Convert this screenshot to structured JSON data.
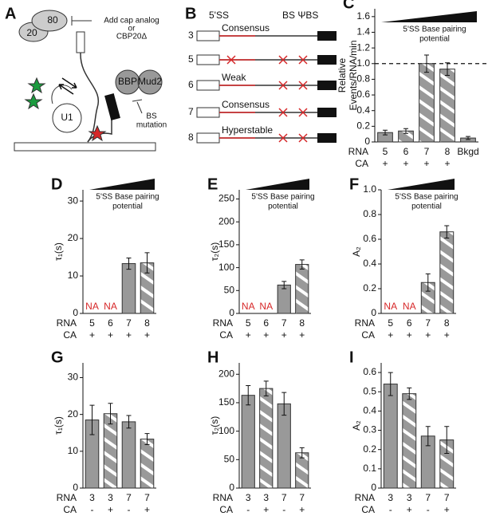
{
  "panels": [
    "A",
    "B"
  ],
  "diagram_a": {
    "cap": [
      "80",
      "20"
    ],
    "note": [
      "Add cap analog",
      "or",
      "CBP20Δ"
    ],
    "proteins": [
      "BBP",
      "Mud2"
    ],
    "bs_note": [
      "BS",
      "mutation"
    ],
    "u1": "U1"
  },
  "diagram_b": {
    "header": [
      "5'SS",
      "BS ΨBS"
    ],
    "rows": [
      {
        "label": "3",
        "site": "Consensus",
        "mut5ss": false,
        "mutbs": false
      },
      {
        "label": "5",
        "site": null,
        "mut5ss": true,
        "mutbs": true
      },
      {
        "label": "6",
        "site": "Weak",
        "mut5ss": false,
        "mutbs": true
      },
      {
        "label": "7",
        "site": "Consensus",
        "mut5ss": false,
        "mutbs": true
      },
      {
        "label": "8",
        "site": "Hyperstable",
        "mut5ss": false,
        "mutbs": true
      }
    ]
  },
  "chart_data": [
    {
      "type": "bar",
      "panel": "C",
      "ylabel": [
        "Relative",
        "Events/RNA/min"
      ],
      "annotation": [
        "5'SS Base pairing",
        "potential"
      ],
      "row_labels": [
        "RNA",
        "CA"
      ],
      "categories": [
        "5",
        "6",
        "7",
        "8",
        "Bkgd"
      ],
      "ca": [
        "+",
        "+",
        "+",
        "+",
        null
      ],
      "values": [
        0.12,
        0.14,
        1.0,
        0.93,
        0.05
      ],
      "errors": [
        0.03,
        0.03,
        0.11,
        0.08,
        0.02
      ],
      "hatched": [
        false,
        true,
        true,
        true,
        false
      ],
      "color": "#999999",
      "reference_line": 1.0,
      "ylim": [
        0,
        1.7
      ],
      "yticks": [
        0,
        0.2,
        0.4,
        0.6,
        0.8,
        {
          "value": 1,
          "label": "1.0"
        },
        1.2,
        1.4,
        1.6
      ]
    },
    {
      "type": "bar",
      "panel": "D",
      "ylabel": "τ₁(s)",
      "annotation": [
        "5'SS Base pairing",
        "potential"
      ],
      "row_labels": [
        "RNA",
        "CA"
      ],
      "categories": [
        "5",
        "6",
        "7",
        "8"
      ],
      "ca": [
        "+",
        "+",
        "+",
        "+"
      ],
      "values": [
        null,
        null,
        13.3,
        13.5
      ],
      "errors": [
        null,
        null,
        1.5,
        2.7
      ],
      "value_labels": [
        "NA",
        "NA",
        null,
        null
      ],
      "hatched": [
        false,
        false,
        false,
        true
      ],
      "color": "#999999",
      "ylim": [
        0,
        33
      ],
      "yticks": [
        0,
        10,
        20,
        30
      ]
    },
    {
      "type": "bar",
      "panel": "E",
      "ylabel": "τ₂(s)",
      "annotation": [
        "5'SS Base pairing",
        "potential"
      ],
      "row_labels": [
        "RNA",
        "CA"
      ],
      "categories": [
        "5",
        "6",
        "7",
        "8"
      ],
      "ca": [
        "+",
        "+",
        "+",
        "+"
      ],
      "values": [
        null,
        null,
        62,
        107
      ],
      "errors": [
        null,
        null,
        8,
        10
      ],
      "value_labels": [
        "NA",
        "NA",
        null,
        null
      ],
      "hatched": [
        false,
        false,
        false,
        true
      ],
      "color": "#999999",
      "ylim": [
        0,
        270
      ],
      "yticks": [
        0,
        50,
        100,
        150,
        200,
        250
      ]
    },
    {
      "type": "bar",
      "panel": "F",
      "ylabel": "A₂",
      "annotation": [
        "5'SS Base pairing",
        "potential"
      ],
      "row_labels": [
        "RNA",
        "CA"
      ],
      "categories": [
        "5",
        "6",
        "7",
        "8"
      ],
      "ca": [
        "+",
        "+",
        "+",
        "+"
      ],
      "values": [
        null,
        null,
        0.25,
        0.66
      ],
      "errors": [
        null,
        null,
        0.07,
        0.05
      ],
      "value_labels": [
        "NA",
        "NA",
        null,
        null
      ],
      "hatched": [
        false,
        false,
        true,
        true
      ],
      "color": "#999999",
      "ylim": [
        0,
        1.0
      ],
      "yticks": [
        0,
        0.2,
        0.4,
        0.6,
        0.8,
        {
          "value": 1,
          "label": "1.0"
        }
      ]
    },
    {
      "type": "bar",
      "panel": "G",
      "ylabel": "τ₁(s)",
      "row_labels": [
        "RNA",
        "CA"
      ],
      "categories": [
        "3",
        "3",
        "7",
        "7"
      ],
      "ca": [
        "-",
        "+",
        "-",
        "+"
      ],
      "values": [
        18.5,
        20.2,
        18.0,
        13.3
      ],
      "errors": [
        4.0,
        2.8,
        1.7,
        1.5
      ],
      "hatched": [
        false,
        true,
        false,
        true
      ],
      "color": "#999999",
      "ylim": [
        0,
        34
      ],
      "yticks": [
        0,
        10,
        20,
        30
      ]
    },
    {
      "type": "bar",
      "panel": "H",
      "ylabel": "τ₂(s)",
      "row_labels": [
        "RNA",
        "CA"
      ],
      "categories": [
        "3",
        "3",
        "7",
        "7"
      ],
      "ca": [
        "-",
        "+",
        "-",
        "+"
      ],
      "values": [
        163,
        175,
        148,
        62
      ],
      "errors": [
        17,
        13,
        20,
        9
      ],
      "hatched": [
        false,
        true,
        false,
        true
      ],
      "color": "#999999",
      "ylim": [
        0,
        220
      ],
      "yticks": [
        0,
        50,
        100,
        150,
        200
      ]
    },
    {
      "type": "bar",
      "panel": "I",
      "ylabel": "A₂",
      "row_labels": [
        "RNA",
        "CA"
      ],
      "categories": [
        "3",
        "3",
        "7",
        "7"
      ],
      "ca": [
        "-",
        "+",
        "-",
        "+"
      ],
      "values": [
        0.54,
        0.49,
        0.27,
        0.25
      ],
      "errors": [
        0.06,
        0.03,
        0.05,
        0.07
      ],
      "hatched": [
        false,
        true,
        false,
        true
      ],
      "color": "#999999",
      "ylim": [
        0,
        0.65
      ],
      "yticks": [
        0,
        0.1,
        0.2,
        0.3,
        0.4,
        0.5,
        0.6
      ]
    }
  ]
}
